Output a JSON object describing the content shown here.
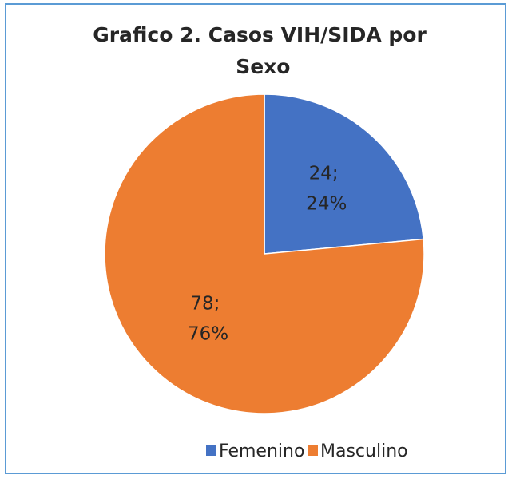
{
  "chart_data": {
    "type": "pie",
    "title": "Grafico 2. Casos VIH/SIDA por Sexo",
    "categories": [
      "Femenino",
      "Masculino"
    ],
    "values": [
      24,
      78
    ],
    "value_labels": [
      "24; 24%",
      "78; 76%"
    ],
    "colors": [
      "#4472c4",
      "#ed7d31"
    ],
    "legend": "bottom"
  }
}
